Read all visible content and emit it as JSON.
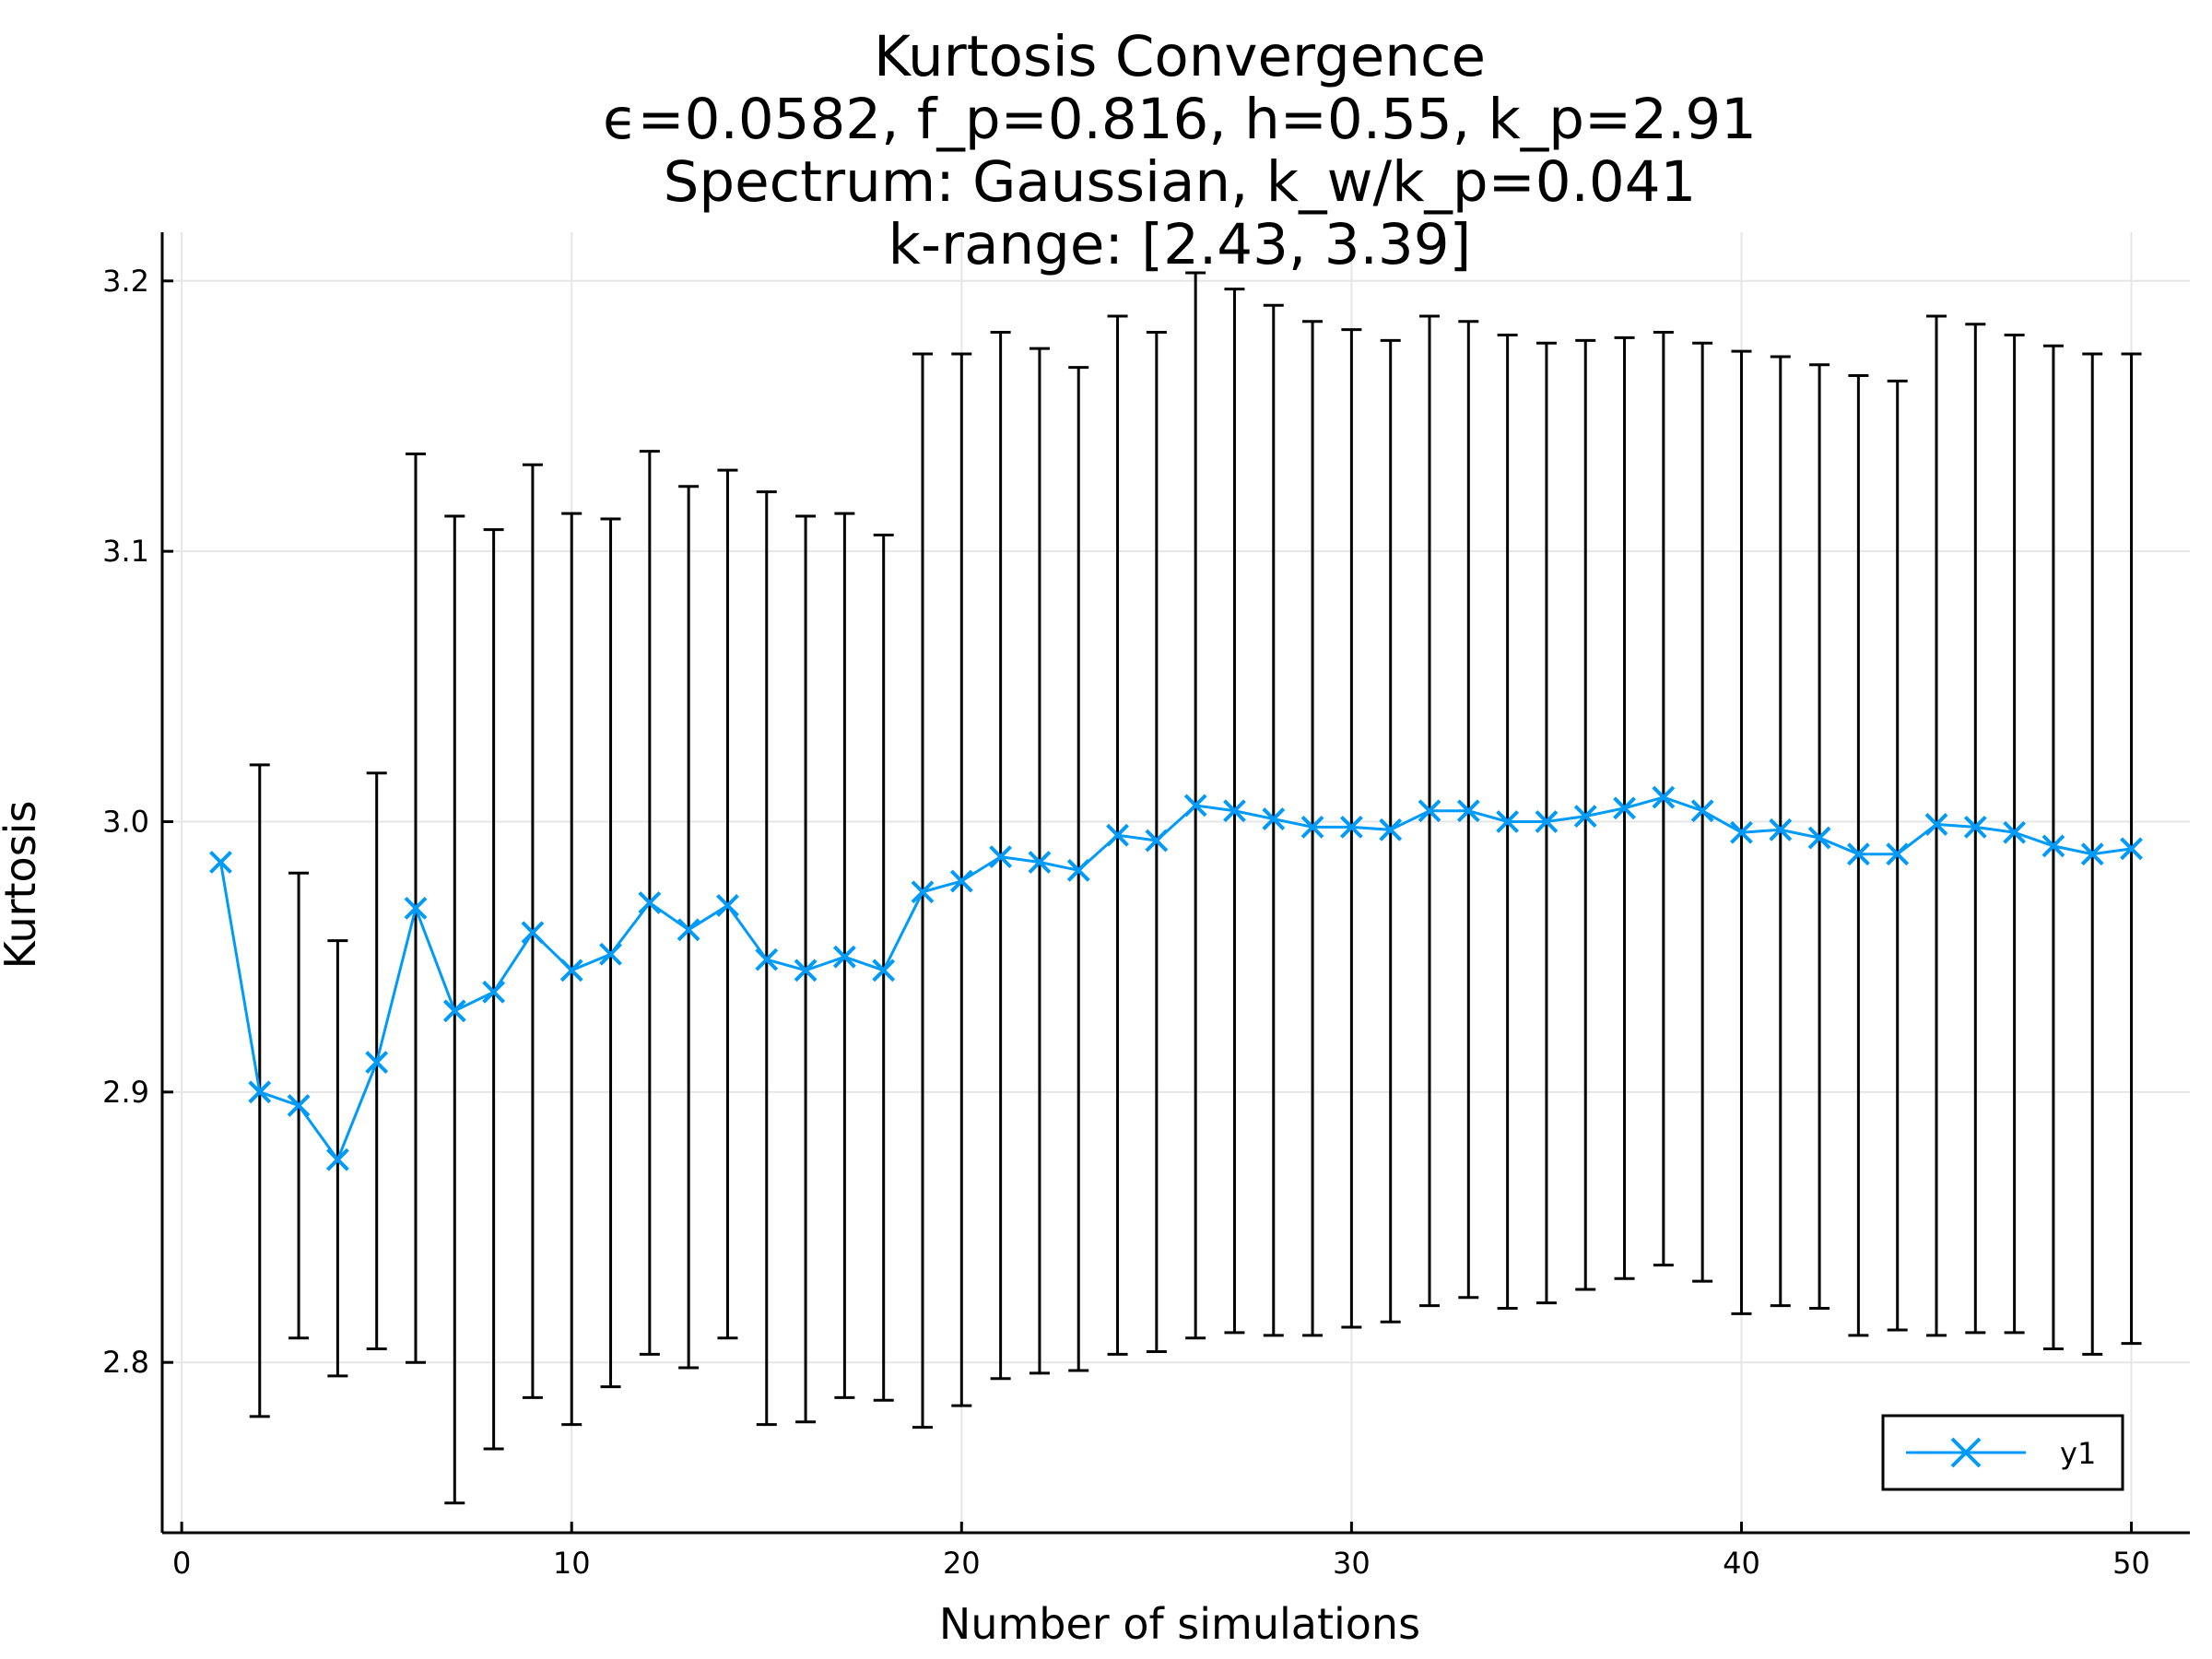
{
  "chart_data": {
    "type": "line",
    "title_lines": [
      "Kurtosis Convergence",
      "ϵ=0.0582, f_p=0.816, h=0.55, k_p=2.91",
      "Spectrum: Gaussian, k_w/k_p=0.041",
      "k-range: [2.43, 3.39]"
    ],
    "xlabel": "Number of simulations",
    "ylabel": "Kurtosis",
    "xlim": [
      -0.5,
      51.5
    ],
    "ylim": [
      2.737,
      3.218
    ],
    "xticks": [
      0,
      10,
      20,
      30,
      40,
      50
    ],
    "xtick_labels": [
      "0",
      "10",
      "20",
      "30",
      "40",
      "50"
    ],
    "yticks": [
      2.8,
      2.9,
      3.0,
      3.1,
      3.2
    ],
    "ytick_labels": [
      "2.8",
      "2.9",
      "3.0",
      "3.1",
      "3.2"
    ],
    "grid": true,
    "legend_position": "bottom-right",
    "series": [
      {
        "name": "y1",
        "color": "#009af9",
        "marker": "x",
        "x": [
          1,
          2,
          3,
          4,
          5,
          6,
          7,
          8,
          9,
          10,
          11,
          12,
          13,
          14,
          15,
          16,
          17,
          18,
          19,
          20,
          21,
          22,
          23,
          24,
          25,
          26,
          27,
          28,
          29,
          30,
          31,
          32,
          33,
          34,
          35,
          36,
          37,
          38,
          39,
          40,
          41,
          42,
          43,
          44,
          45,
          46,
          47,
          48,
          49,
          50
        ],
        "y": [
          2.985,
          2.9,
          2.895,
          2.875,
          2.911,
          2.968,
          2.93,
          2.937,
          2.959,
          2.945,
          2.951,
          2.97,
          2.96,
          2.969,
          2.949,
          2.945,
          2.95,
          2.945,
          2.974,
          2.978,
          2.987,
          2.985,
          2.982,
          2.995,
          2.993,
          3.006,
          3.004,
          3.001,
          2.998,
          2.998,
          2.997,
          3.004,
          3.004,
          3.0,
          3.0,
          3.002,
          3.005,
          3.009,
          3.004,
          2.996,
          2.997,
          2.994,
          2.988,
          2.988,
          2.999,
          2.998,
          2.996,
          2.991,
          2.988,
          2.99
        ],
        "error_low": [
          null,
          2.78,
          2.809,
          2.795,
          2.805,
          2.8,
          2.748,
          2.768,
          2.787,
          2.777,
          2.791,
          2.803,
          2.798,
          2.809,
          2.777,
          2.778,
          2.787,
          2.786,
          2.776,
          2.784,
          2.794,
          2.796,
          2.797,
          2.803,
          2.804,
          2.809,
          2.811,
          2.81,
          2.81,
          2.813,
          2.815,
          2.821,
          2.824,
          2.82,
          2.822,
          2.827,
          2.831,
          2.836,
          2.83,
          2.818,
          2.821,
          2.82,
          2.81,
          2.812,
          2.81,
          2.811,
          2.811,
          2.805,
          2.803,
          2.807
        ],
        "error_high": [
          null,
          3.021,
          2.981,
          2.956,
          3.018,
          3.136,
          3.113,
          3.108,
          3.132,
          3.114,
          3.112,
          3.137,
          3.124,
          3.13,
          3.122,
          3.113,
          3.114,
          3.106,
          3.173,
          3.173,
          3.181,
          3.175,
          3.168,
          3.187,
          3.181,
          3.203,
          3.197,
          3.191,
          3.185,
          3.182,
          3.178,
          3.187,
          3.185,
          3.18,
          3.177,
          3.178,
          3.179,
          3.181,
          3.177,
          3.174,
          3.172,
          3.169,
          3.165,
          3.163,
          3.187,
          3.184,
          3.18,
          3.176,
          3.173,
          3.173
        ]
      }
    ]
  }
}
